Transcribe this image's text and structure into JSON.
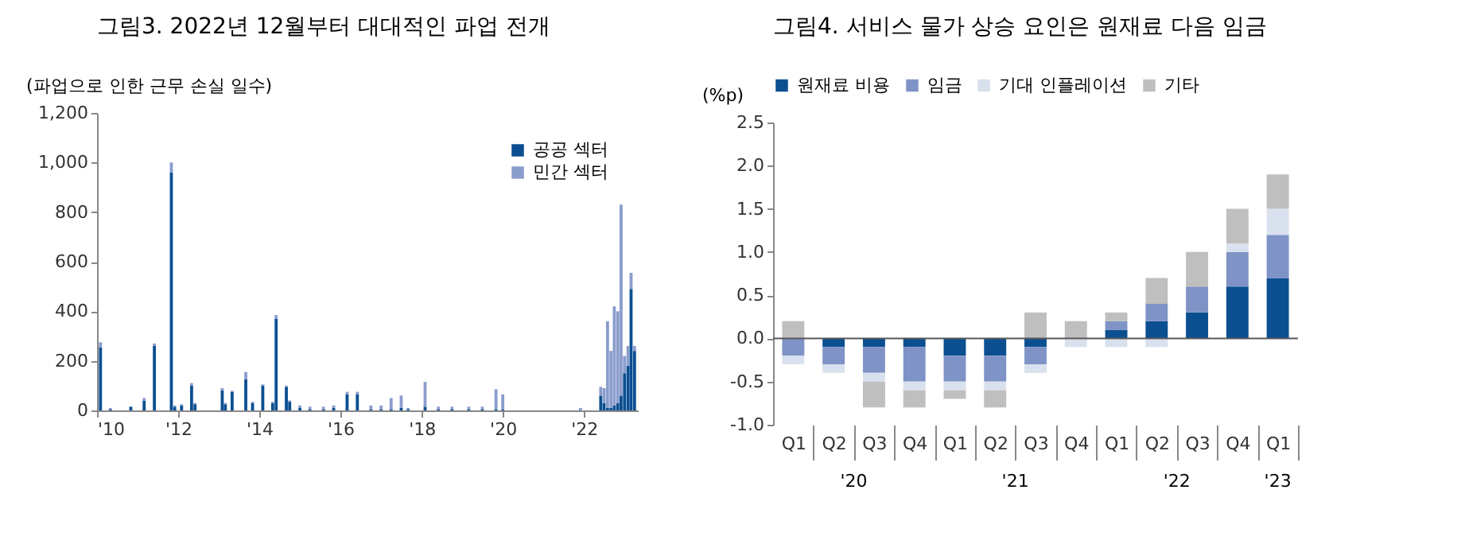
{
  "chart_data": [
    {
      "type": "bar",
      "title": "그림3. 2022년 12월부터 대대적인 파업 전개",
      "ylabel": "(파업으로 인한 근무 손실 일수)",
      "stacked": true,
      "legend": "top right",
      "grid": false,
      "x": [
        "2010-02",
        "2010-05",
        "2010-11",
        "2011-03",
        "2011-06",
        "2011-11",
        "2011-12",
        "2012-02",
        "2012-05",
        "2012-06",
        "2013-02",
        "2013-03",
        "2013-05",
        "2013-09",
        "2013-11",
        "2014-02",
        "2014-05",
        "2014-06",
        "2014-09",
        "2014-10",
        "2015-01",
        "2015-04",
        "2015-08",
        "2015-11",
        "2016-03",
        "2016-06",
        "2016-10",
        "2017-01",
        "2017-04",
        "2017-07",
        "2017-09",
        "2018-02",
        "2018-06",
        "2018-10",
        "2019-03",
        "2019-07",
        "2019-11",
        "2020-01",
        "2021-12",
        "2022-06",
        "2022-07",
        "2022-08",
        "2022-09",
        "2022-10",
        "2022-11",
        "2022-12",
        "2023-01",
        "2023-02",
        "2023-03",
        "2023-04"
      ],
      "xlim": [
        "2010-01",
        "2023-05"
      ],
      "xticks": [
        {
          "value": "2010-01",
          "label": "'10"
        },
        {
          "value": "2012-01",
          "label": "'12"
        },
        {
          "value": "2014-01",
          "label": "'14"
        },
        {
          "value": "2016-01",
          "label": "'16"
        },
        {
          "value": "2018-01",
          "label": "'18"
        },
        {
          "value": "2020-01",
          "label": "'20"
        },
        {
          "value": "2022-01",
          "label": "'22"
        }
      ],
      "ylim": [
        0,
        1200
      ],
      "yticks": [
        0,
        200,
        400,
        600,
        800,
        {
          "value": 1000,
          "label": "1,000"
        },
        {
          "value": 1200,
          "label": "1,200"
        }
      ],
      "series": [
        {
          "name": "공공 섹터",
          "color": "#0b4f91",
          "values": [
            255,
            5,
            15,
            40,
            260,
            960,
            15,
            20,
            100,
            25,
            80,
            25,
            75,
            125,
            30,
            100,
            30,
            370,
            95,
            35,
            10,
            5,
            5,
            10,
            65,
            65,
            5,
            5,
            5,
            10,
            5,
            15,
            5,
            5,
            5,
            5,
            5,
            5,
            0,
            60,
            30,
            10,
            10,
            20,
            30,
            60,
            150,
            180,
            490,
            240
          ]
        },
        {
          "name": "민간 섹터",
          "color": "#8a9dcc",
          "values": [
            20,
            5,
            null,
            10,
            10,
            40,
            5,
            5,
            10,
            5,
            10,
            5,
            5,
            30,
            5,
            5,
            5,
            15,
            5,
            5,
            10,
            10,
            10,
            10,
            10,
            10,
            15,
            15,
            45,
            50,
            5,
            100,
            10,
            10,
            10,
            10,
            80,
            60,
            10,
            35,
            60,
            350,
            230,
            400,
            370,
            770,
            70,
            80,
            65,
            20
          ]
        }
      ]
    },
    {
      "type": "bar",
      "title": "그림4. 서비스 물가 상승 요인은 원재료 다음 임금",
      "ylabel": "(%p)",
      "stacked": true,
      "legend": "top",
      "grid": false,
      "categories": [
        "Q1",
        "Q2",
        "Q3",
        "Q4",
        "Q1",
        "Q2",
        "Q3",
        "Q4",
        "Q1",
        "Q2",
        "Q3",
        "Q4",
        "Q1"
      ],
      "annotations": [
        "'20",
        "'21",
        "'22",
        "'23"
      ],
      "ylim": [
        -1,
        2.5
      ],
      "yticks": [
        {
          "value": -1,
          "label": "-1.0"
        },
        {
          "value": -0.5,
          "label": "-0.5"
        },
        {
          "value": 0,
          "label": "0.0"
        },
        {
          "value": 0.5,
          "label": "0.5"
        },
        {
          "value": 1,
          "label": "1.0"
        },
        {
          "value": 1.5,
          "label": "1.5"
        },
        {
          "value": 2,
          "label": "2.0"
        },
        2.5
      ],
      "ref_lines": [
        {
          "axis": "y",
          "value": 0,
          "color": "#595959"
        }
      ],
      "series": [
        {
          "name": "원재료 비용",
          "color": "#0b4f91",
          "values": [
            0,
            -0.1,
            -0.1,
            -0.1,
            -0.2,
            -0.2,
            -0.1,
            0,
            0.1,
            0.2,
            0.3,
            0.6,
            0.7
          ]
        },
        {
          "name": "임금",
          "color": "#7f93c6",
          "values": [
            -0.2,
            -0.2,
            -0.3,
            -0.4,
            -0.3,
            -0.3,
            -0.2,
            0,
            0.1,
            0.2,
            0.3,
            0.4,
            0.5
          ]
        },
        {
          "name": "기대 인플레이션",
          "color": "#d9e1ee",
          "values": [
            -0.1,
            -0.1,
            -0.1,
            -0.1,
            -0.1,
            -0.1,
            -0.1,
            -0.1,
            -0.1,
            -0.1,
            0,
            0.1,
            0.3
          ]
        },
        {
          "name": "기타",
          "color": "#bfbfbf",
          "values": [
            0.2,
            0,
            -0.3,
            -0.2,
            -0.1,
            -0.2,
            0.3,
            0.2,
            0.1,
            0.3,
            0.4,
            0.4,
            0.4
          ]
        }
      ]
    }
  ]
}
